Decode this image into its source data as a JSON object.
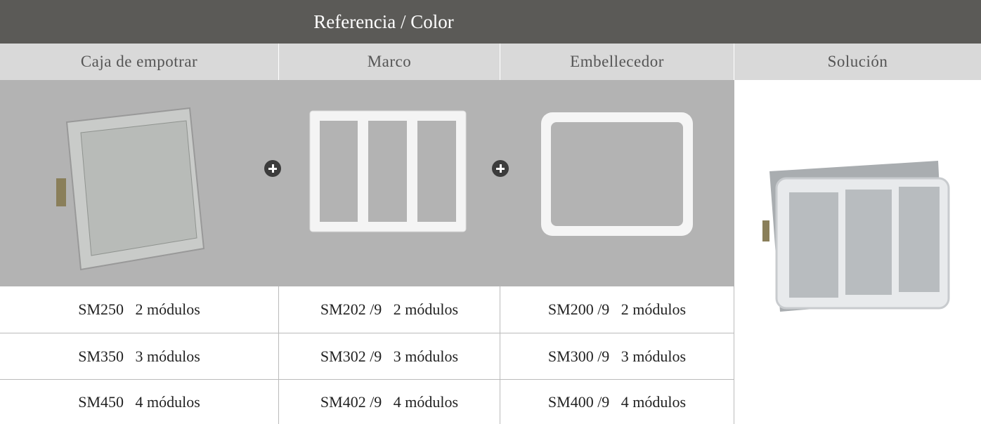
{
  "header": {
    "title": "Referencia / Color"
  },
  "columns": [
    "Caja de empotrar",
    "Marco",
    "Embellecedor",
    "Solución"
  ],
  "rows": [
    [
      "SM250   2 módulos",
      "SM202 /9   2 módulos",
      "SM200 /9   2 módulos"
    ],
    [
      "SM350   3 módulos",
      "SM302 /9   3 módulos",
      "SM300 /9   3 módulos"
    ],
    [
      "SM450   4 módulos",
      "SM402 /9   4 módulos",
      "SM400 /9   4 módulos"
    ]
  ]
}
